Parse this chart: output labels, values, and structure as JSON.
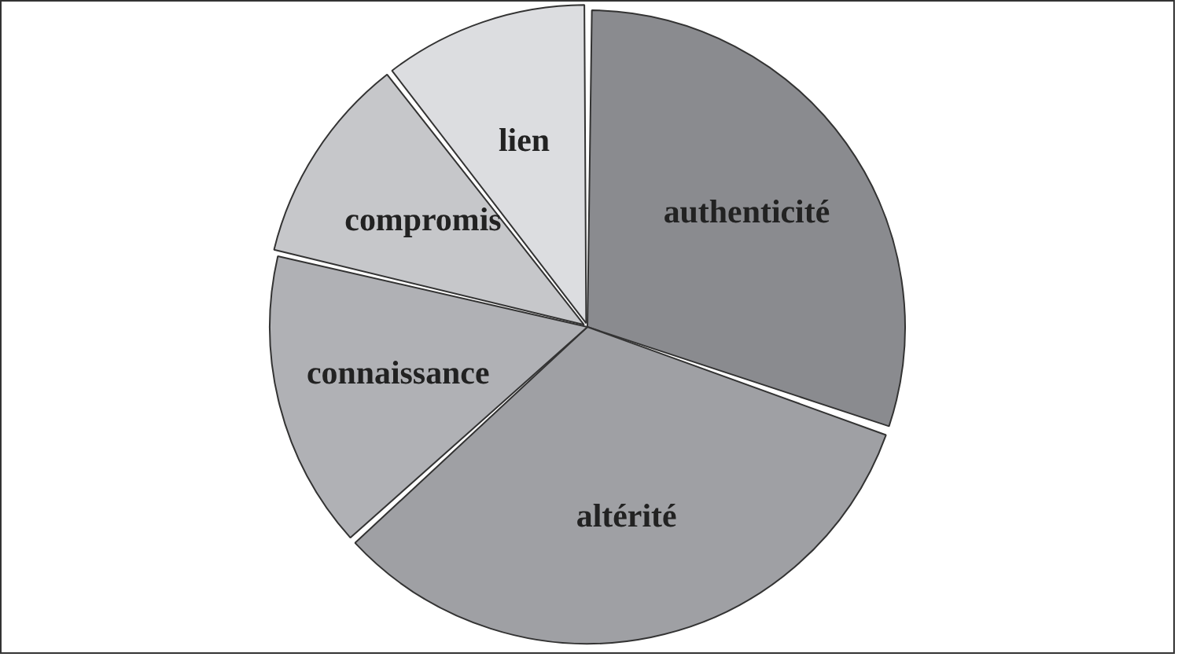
{
  "chart_data": {
    "type": "pie",
    "categories": [
      "authenticité",
      "altérité",
      "connaissance",
      "compromis",
      "lien"
    ],
    "values": [
      30.3,
      33,
      15.4,
      10.8,
      10.5
    ],
    "colors": [
      "#8a8b8f",
      "#9fa0a4",
      "#b0b1b5",
      "#c6c7ca",
      "#dcdde0"
    ]
  }
}
